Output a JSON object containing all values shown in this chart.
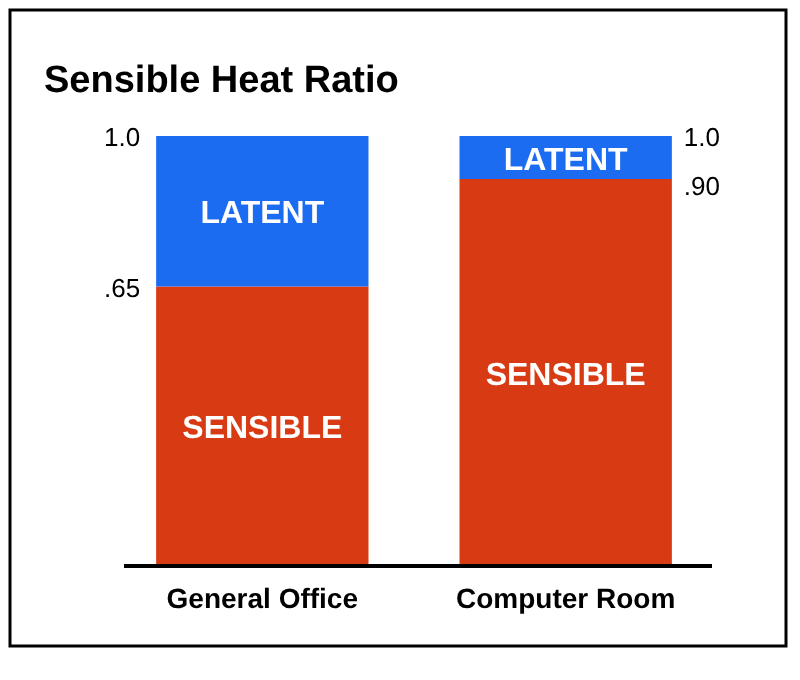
{
  "chart_data": {
    "type": "bar",
    "title": "Sensible Heat Ratio",
    "categories": [
      "General Office",
      "Computer Room"
    ],
    "stacked": true,
    "ylim": [
      0,
      1
    ],
    "yticks": [
      {
        "value": 0.65,
        "label": ".65"
      },
      {
        "value": 1,
        "label": "1.0"
      }
    ],
    "y2lim": [
      0,
      1
    ],
    "y2ticks": [
      {
        "value": 0.9,
        "label": ".90"
      },
      {
        "value": 1,
        "label": "1.0"
      }
    ],
    "series": [
      {
        "name": "SENSIBLE",
        "color": "#d83a14",
        "values": [
          0.65,
          0.9
        ]
      },
      {
        "name": "LATENT",
        "color": "#1c6cf2",
        "values": [
          0.35,
          0.1
        ]
      }
    ]
  }
}
